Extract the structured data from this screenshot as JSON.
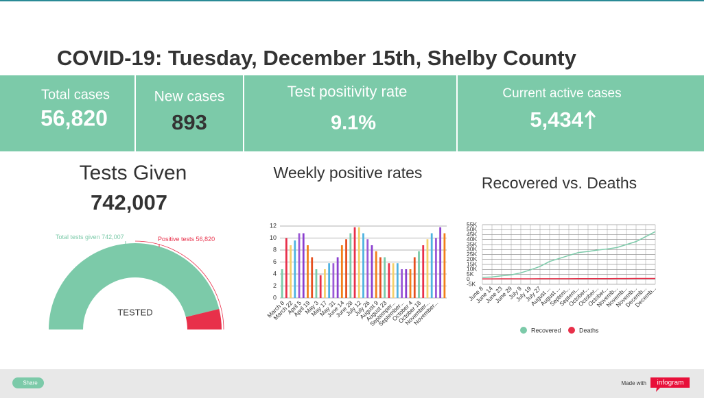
{
  "title": "COVID-19: Tuesday, December 15th, Shelby County",
  "kpis": [
    {
      "label": "Total cases",
      "value": "56,820"
    },
    {
      "label": "New cases",
      "value": "893"
    },
    {
      "label": "Test positivity rate",
      "value": "9.1%"
    },
    {
      "label": "Current active cases",
      "value": "5,434"
    }
  ],
  "tests_heading": "Tests Given",
  "tests_total": "742,007",
  "footer": {
    "share": "Share",
    "made_with": "Made with",
    "brand": "infogram"
  },
  "chart_data": [
    {
      "type": "gauge",
      "center_label": "TESTED",
      "categories": [
        "Total tests given",
        "Positive tests"
      ],
      "values": [
        742007,
        56820
      ],
      "value_labels": [
        "742,007",
        "56,820"
      ],
      "colors": [
        "#7ccaa9",
        "#e8304a"
      ]
    },
    {
      "type": "bar",
      "title": "Weekly positive rates",
      "categories": [
        "March 8",
        null,
        "March 22",
        null,
        "April 5",
        null,
        "April 19",
        null,
        "May 3",
        null,
        "May 17",
        null,
        "May 31",
        null,
        "June 14",
        null,
        "June 28",
        null,
        "July 12",
        null,
        "July 26",
        null,
        "August 9",
        null,
        "August 23",
        null,
        "Septemper...",
        null,
        "September...",
        null,
        "October 4",
        null,
        "October 18",
        null,
        "November...",
        null,
        "November...",
        null,
        null
      ],
      "values": [
        4.8,
        10,
        8.8,
        9.6,
        10.8,
        10.8,
        8.8,
        6.8,
        4.8,
        3.8,
        4.8,
        5.8,
        5.8,
        6.8,
        8.8,
        9.8,
        10.8,
        11.8,
        11.8,
        10.8,
        9.8,
        8.8,
        7.8,
        6.8,
        6.8,
        5.8,
        5.8,
        5.8,
        4.8,
        4.8,
        4.8,
        6.8,
        7.8,
        8.8,
        9.8,
        10.8,
        10,
        11.8,
        10.8
      ],
      "colors": [
        "#7ccaa9",
        "#e8304a",
        "#f5d06a",
        "#4fb3e0",
        "#9b59d6",
        "#8b3fcf",
        "#f27f1b",
        "#e5501f"
      ],
      "ylim": [
        0,
        12
      ],
      "yticks": [
        0,
        2,
        4,
        6,
        8,
        10,
        12
      ],
      "grid": true
    },
    {
      "type": "line",
      "title": "Recovered vs. Deaths",
      "categories": [
        "June 8",
        "June 14",
        "June 23",
        "June 29",
        "July 9",
        "July 19",
        "July 27",
        "August ...",
        "August ...",
        "Septem...",
        "Septem...",
        "October...",
        "October...",
        "October...",
        "Novemb...",
        "Novemb...",
        "Novemb...",
        "Decemb...",
        "Decemb..."
      ],
      "series": [
        {
          "name": "Recovered",
          "color": "#7ccaa9",
          "values": [
            2000,
            2300,
            3500,
            4500,
            6500,
            9500,
            13000,
            18000,
            21000,
            24000,
            27000,
            28000,
            29500,
            30500,
            32000,
            35000,
            38000,
            43000,
            48000
          ]
        },
        {
          "name": "Deaths",
          "color": "#e8304a",
          "values": [
            400,
            450,
            480,
            500,
            520,
            550,
            580,
            600,
            620,
            640,
            660,
            680,
            700,
            720,
            750,
            800,
            850,
            880,
            900
          ]
        }
      ],
      "ylim": [
        -5000,
        55000
      ],
      "yticks": [
        {
          "value": -5000,
          "label": "-5K"
        },
        0,
        {
          "value": 5000,
          "label": "5K"
        },
        {
          "value": 10000,
          "label": "10K"
        },
        {
          "value": 15000,
          "label": "15K"
        },
        {
          "value": 20000,
          "label": "20K"
        },
        {
          "value": 25000,
          "label": "25K"
        },
        {
          "value": 30000,
          "label": "30K"
        },
        {
          "value": 35000,
          "label": "35K"
        },
        {
          "value": 40000,
          "label": "40K"
        },
        {
          "value": 45000,
          "label": "45K"
        },
        {
          "value": 50000,
          "label": "50K"
        },
        {
          "value": 55000,
          "label": "55K"
        }
      ],
      "grid": true,
      "legend": "bottom"
    }
  ]
}
